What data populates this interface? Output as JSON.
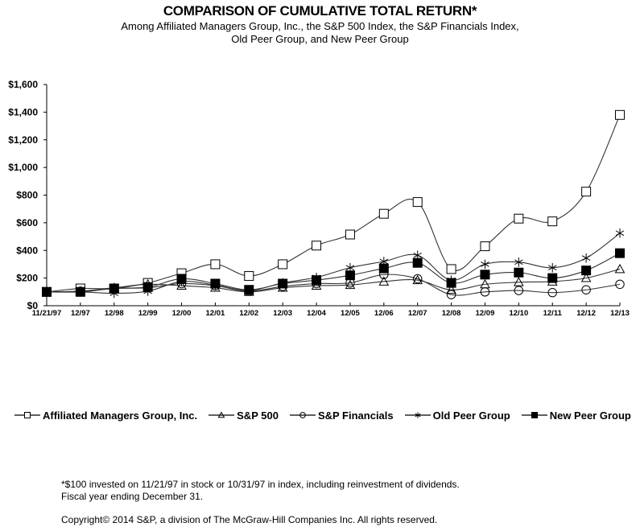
{
  "chart_data": {
    "type": "line",
    "title": "COMPARISON OF CUMULATIVE TOTAL RETURN*",
    "subtitle": [
      "Among Affiliated Managers Group, Inc., the S&P 500 Index,  the S&P Financials Index,",
      "Old Peer Group, and New Peer Group"
    ],
    "xlabel": "",
    "ylabel": "",
    "x": [
      "11/21/97",
      "12/97",
      "12/98",
      "12/99",
      "12/00",
      "12/01",
      "12/02",
      "12/03",
      "12/04",
      "12/05",
      "12/06",
      "12/07",
      "12/08",
      "12/09",
      "12/10",
      "12/11",
      "12/12",
      "12/13"
    ],
    "ylim": [
      0,
      1600
    ],
    "yticks": [
      0,
      200,
      400,
      600,
      800,
      1000,
      1200,
      1400,
      1600
    ],
    "ytick_labels": [
      "$0",
      "$200",
      "$400",
      "$600",
      "$800",
      "$1,000",
      "$1,200",
      "$1,400",
      "$1,600"
    ],
    "grid": false,
    "legend_position": "bottom",
    "series": [
      {
        "name": "Affiliated Managers Group, Inc.",
        "marker": "open-square",
        "values": [
          100,
          125,
          125,
          165,
          235,
          300,
          215,
          300,
          435,
          515,
          665,
          750,
          265,
          430,
          630,
          610,
          825,
          1380
        ]
      },
      {
        "name": "S&P 500",
        "marker": "open-triangle",
        "values": [
          100,
          105,
          130,
          155,
          145,
          130,
          100,
          130,
          145,
          150,
          175,
          185,
          115,
          155,
          170,
          175,
          200,
          265
        ]
      },
      {
        "name": "S&P Financials",
        "marker": "open-circle",
        "values": [
          100,
          105,
          125,
          130,
          160,
          145,
          105,
          140,
          160,
          165,
          225,
          195,
          80,
          100,
          110,
          95,
          115,
          155
        ]
      },
      {
        "name": "Old Peer Group",
        "marker": "asterisk",
        "values": [
          100,
          100,
          90,
          105,
          175,
          150,
          110,
          165,
          205,
          275,
          320,
          365,
          185,
          300,
          315,
          275,
          345,
          525
        ]
      },
      {
        "name": "New Peer Group",
        "marker": "filled-square",
        "values": [
          100,
          100,
          125,
          135,
          195,
          160,
          115,
          160,
          185,
          220,
          270,
          310,
          165,
          225,
          240,
          200,
          255,
          380
        ]
      }
    ]
  },
  "footnotes": {
    "note1": "*$100 invested on 11/21/97 in stock or 10/31/97 in index, including reinvestment of dividends.",
    "note2": "Fiscal year ending December 31.",
    "copyright": "Copyright© 2014 S&P, a division of The McGraw-Hill Companies Inc. All rights reserved."
  }
}
